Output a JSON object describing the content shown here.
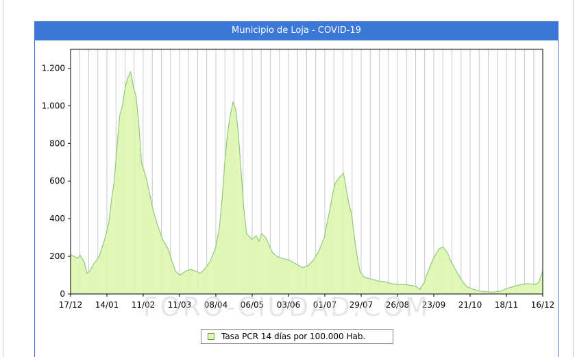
{
  "chart_data": {
    "type": "area",
    "title": "Municipio de Loja - COVID-19",
    "xlabel": "",
    "ylabel": "",
    "ylim": [
      0,
      1300
    ],
    "yticks": [
      0,
      200,
      400,
      600,
      800,
      1000,
      1200
    ],
    "ytick_labels": [
      "0",
      "200",
      "400",
      "600",
      "800",
      "1.000",
      "1.200"
    ],
    "x_tick_labels": [
      "17/12",
      "14/01",
      "11/02",
      "11/03",
      "08/04",
      "06/05",
      "03/06",
      "01/07",
      "29/07",
      "26/08",
      "23/09",
      "21/10",
      "18/11",
      "16/12"
    ],
    "x_start": "17/12",
    "x_end": "16/12",
    "grid": "vertical",
    "legend_position": "bottom",
    "watermark": "FORO-CIUDAD.COM",
    "colors": {
      "fill": "#ddf6b3",
      "line": "#8fca7a",
      "title_bg": "#3c78d8",
      "grid": "#c8c8c8"
    },
    "series": [
      {
        "name": "Tasa PCR 14 días por 100.000 Hab.",
        "points": [
          [
            0,
            210
          ],
          [
            5,
            190
          ],
          [
            7,
            205
          ],
          [
            10,
            170
          ],
          [
            12,
            110
          ],
          [
            14,
            120
          ],
          [
            17,
            160
          ],
          [
            21,
            200
          ],
          [
            25,
            290
          ],
          [
            28,
            380
          ],
          [
            30,
            500
          ],
          [
            32,
            600
          ],
          [
            34,
            780
          ],
          [
            36,
            950
          ],
          [
            38,
            1000
          ],
          [
            40,
            1100
          ],
          [
            42,
            1150
          ],
          [
            44,
            1180
          ],
          [
            46,
            1100
          ],
          [
            48,
            1050
          ],
          [
            50,
            900
          ],
          [
            52,
            700
          ],
          [
            54,
            650
          ],
          [
            56,
            600
          ],
          [
            58,
            530
          ],
          [
            60,
            460
          ],
          [
            63,
            380
          ],
          [
            66,
            320
          ],
          [
            68,
            280
          ],
          [
            70,
            260
          ],
          [
            72,
            230
          ],
          [
            74,
            180
          ],
          [
            77,
            120
          ],
          [
            80,
            100
          ],
          [
            84,
            120
          ],
          [
            88,
            130
          ],
          [
            92,
            120
          ],
          [
            95,
            110
          ],
          [
            98,
            130
          ],
          [
            102,
            170
          ],
          [
            106,
            240
          ],
          [
            109,
            350
          ],
          [
            111,
            500
          ],
          [
            113,
            700
          ],
          [
            115,
            850
          ],
          [
            117,
            950
          ],
          [
            119,
            1020
          ],
          [
            121,
            980
          ],
          [
            123,
            850
          ],
          [
            125,
            650
          ],
          [
            127,
            450
          ],
          [
            129,
            320
          ],
          [
            133,
            290
          ],
          [
            136,
            310
          ],
          [
            138,
            280
          ],
          [
            140,
            320
          ],
          [
            143,
            300
          ],
          [
            146,
            250
          ],
          [
            148,
            220
          ],
          [
            151,
            200
          ],
          [
            155,
            190
          ],
          [
            160,
            180
          ],
          [
            165,
            160
          ],
          [
            170,
            140
          ],
          [
            174,
            150
          ],
          [
            178,
            180
          ],
          [
            182,
            230
          ],
          [
            186,
            300
          ],
          [
            188,
            380
          ],
          [
            190,
            450
          ],
          [
            192,
            530
          ],
          [
            194,
            590
          ],
          [
            197,
            620
          ],
          [
            200,
            640
          ],
          [
            202,
            560
          ],
          [
            204,
            480
          ],
          [
            206,
            420
          ],
          [
            208,
            300
          ],
          [
            210,
            200
          ],
          [
            212,
            120
          ],
          [
            215,
            90
          ],
          [
            220,
            80
          ],
          [
            225,
            70
          ],
          [
            230,
            65
          ],
          [
            235,
            55
          ],
          [
            240,
            50
          ],
          [
            245,
            50
          ],
          [
            250,
            45
          ],
          [
            253,
            40
          ],
          [
            256,
            25
          ],
          [
            259,
            60
          ],
          [
            262,
            120
          ],
          [
            266,
            190
          ],
          [
            270,
            240
          ],
          [
            273,
            250
          ],
          [
            276,
            220
          ],
          [
            279,
            170
          ],
          [
            282,
            130
          ],
          [
            286,
            80
          ],
          [
            290,
            40
          ],
          [
            295,
            25
          ],
          [
            300,
            15
          ],
          [
            305,
            12
          ],
          [
            310,
            10
          ],
          [
            315,
            15
          ],
          [
            320,
            30
          ],
          [
            325,
            40
          ],
          [
            330,
            50
          ],
          [
            335,
            55
          ],
          [
            340,
            50
          ],
          [
            343,
            60
          ],
          [
            345,
            100
          ],
          [
            346,
            120
          ]
        ]
      }
    ]
  }
}
